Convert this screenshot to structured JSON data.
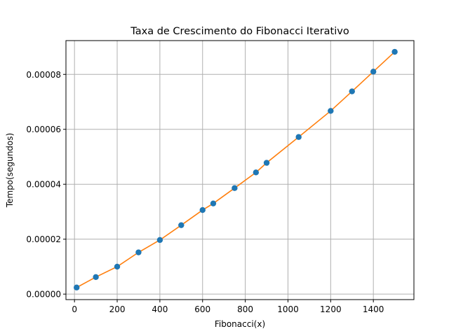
{
  "chart_data": {
    "type": "scatter",
    "title": "Taxa de Crescimento do Fibonacci Iterativo",
    "xlabel": "Fibonacci(x)",
    "ylabel": "Tempo(segundos)",
    "xlim": [
      -40,
      1590
    ],
    "ylim": [
      -2e-06,
      9.23e-05
    ],
    "x_ticks": [
      0,
      200,
      400,
      600,
      800,
      1000,
      1200,
      1400
    ],
    "y_ticks": [
      0,
      2e-05,
      4e-05,
      6e-05,
      8e-05
    ],
    "x_tick_labels": [
      "0",
      "200",
      "400",
      "600",
      "800",
      "1000",
      "1200",
      "1400"
    ],
    "y_tick_labels": [
      "0.00000",
      "0.00002",
      "0.00004",
      "0.00006",
      "0.00008"
    ],
    "grid": true,
    "colors": {
      "points": "#1f77b4",
      "line": "#ff7f0e",
      "grid": "#b0b0b0"
    },
    "series": [
      {
        "x": [
          10,
          100,
          200,
          300,
          400,
          500,
          600,
          650,
          750,
          850,
          900,
          1050,
          1200,
          1300,
          1400,
          1500
        ],
        "y": [
          2.4e-06,
          6.2e-06,
          1e-05,
          1.52e-05,
          1.97e-05,
          2.51e-05,
          3.06e-05,
          3.3e-05,
          3.86e-05,
          4.43e-05,
          4.78e-05,
          5.72e-05,
          6.67e-05,
          7.38e-05,
          8.1e-05,
          8.82e-05
        ]
      }
    ]
  }
}
